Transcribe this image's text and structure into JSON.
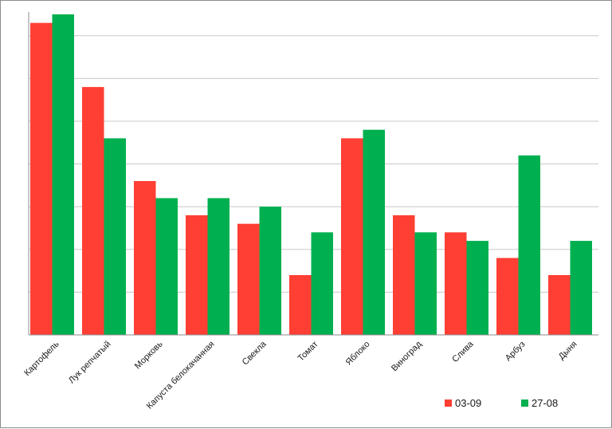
{
  "chart_data": {
    "type": "bar",
    "categories": [
      "Картофель",
      "Лук репчатый",
      "Морковь",
      "Капуста белокачанная",
      "Свекла",
      "Томат",
      "Яблоко",
      "Виноград",
      "Слива",
      "Арбуз",
      "Дыня"
    ],
    "series": [
      {
        "name": "03-09",
        "color": "#ff3f34",
        "values": [
          7.3,
          5.8,
          3.6,
          2.8,
          2.6,
          1.4,
          4.6,
          2.8,
          2.4,
          1.8,
          1.4
        ]
      },
      {
        "name": "27-08",
        "color": "#00b050",
        "values": [
          7.5,
          4.6,
          3.2,
          3.2,
          3.0,
          2.4,
          4.8,
          2.4,
          2.2,
          4.2,
          2.2
        ]
      }
    ],
    "ylim": [
      0,
      7.5
    ],
    "grid": true,
    "y_tick_labels_shown": false,
    "legend_position": "bottom-right"
  }
}
